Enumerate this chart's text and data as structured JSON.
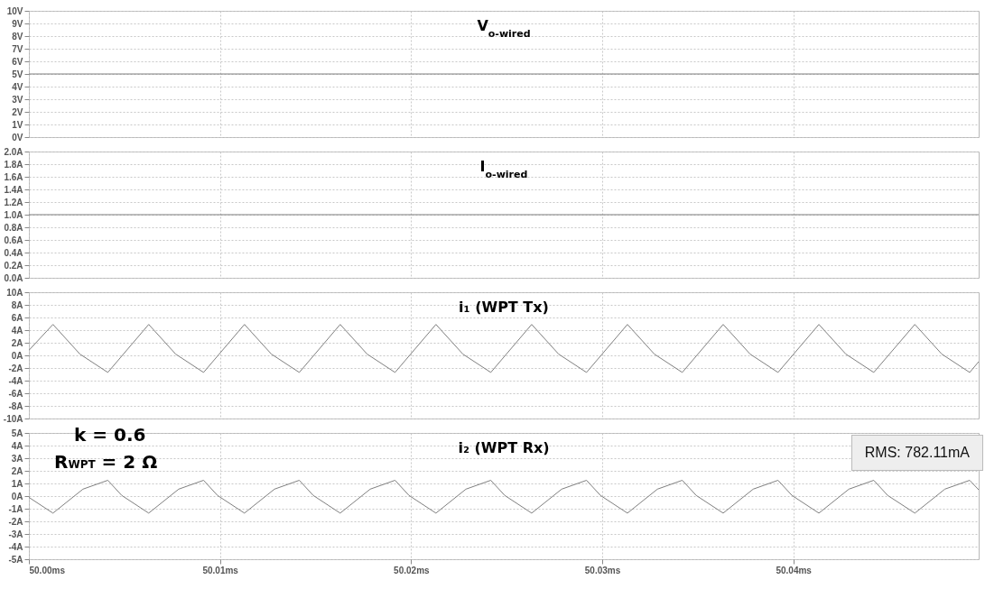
{
  "chart_data": [
    {
      "type": "line",
      "title": "V$_{o-wired}$",
      "x": [
        50,
        50.0497
      ],
      "values": [
        5,
        5
      ],
      "color": "#7f7f7f",
      "xlim": [
        50,
        50.0497
      ],
      "xticks": [
        {
          "value": 50,
          "label": null
        },
        {
          "value": 50.01,
          "label": null
        },
        {
          "value": 50.02,
          "label": null
        },
        {
          "value": 50.03,
          "label": null
        },
        {
          "value": 50.04,
          "label": null
        }
      ],
      "ylim": [
        0,
        10
      ],
      "yticks": [
        {
          "value": 0,
          "label": "0V"
        },
        {
          "value": 1,
          "label": "1V"
        },
        {
          "value": 2,
          "label": "2V"
        },
        {
          "value": 3,
          "label": "3V"
        },
        {
          "value": 4,
          "label": "4V"
        },
        {
          "value": 5,
          "label": "5V"
        },
        {
          "value": 6,
          "label": "6V"
        },
        {
          "value": 7,
          "label": "7V"
        },
        {
          "value": 8,
          "label": "8V"
        },
        {
          "value": 9,
          "label": "9V"
        },
        {
          "value": 10,
          "label": "10V"
        }
      ],
      "grid": true,
      "tick_labels": "y"
    },
    {
      "type": "line",
      "title": "I$_{o-wired}$",
      "x": [
        50,
        50.0497
      ],
      "values": [
        1,
        1
      ],
      "color": "#7f7f7f",
      "xlim": [
        50,
        50.0497
      ],
      "xticks": [
        {
          "value": 50,
          "label": null
        },
        {
          "value": 50.01,
          "label": null
        },
        {
          "value": 50.02,
          "label": null
        },
        {
          "value": 50.03,
          "label": null
        },
        {
          "value": 50.04,
          "label": null
        }
      ],
      "ylim": [
        0,
        2
      ],
      "yticks": [
        {
          "value": 0,
          "label": "0.0A"
        },
        {
          "value": 0.2,
          "label": "0.2A"
        },
        {
          "value": 0.4,
          "label": "0.4A"
        },
        {
          "value": 0.6,
          "label": "0.6A"
        },
        {
          "value": 0.8,
          "label": "0.8A"
        },
        {
          "value": 1,
          "label": "1.0A"
        },
        {
          "value": 1.2,
          "label": "1.2A"
        },
        {
          "value": 1.4,
          "label": "1.4A"
        },
        {
          "value": 1.6,
          "label": "1.6A"
        },
        {
          "value": 1.8,
          "label": "1.8A"
        },
        {
          "value": 2,
          "label": "2.0A"
        }
      ],
      "grid": true,
      "tick_labels": "y"
    },
    {
      "type": "line",
      "title": "i₁ (WPT Tx)",
      "x": [
        50,
        50.00126,
        50.00267,
        50.00413,
        50.00627,
        50.00768,
        50.00914,
        50.01128,
        50.01269,
        50.01415,
        50.01629,
        50.0177,
        50.01916,
        50.0213,
        50.02271,
        50.02417,
        50.02631,
        50.02772,
        50.02918,
        50.03132,
        50.03273,
        50.03419,
        50.03633,
        50.03774,
        50.0392,
        50.04134,
        50.04275,
        50.04421,
        50.04636,
        50.04777,
        50.04923,
        50.0497
      ],
      "values": [
        0.8,
        4.9,
        0.2,
        -2.7,
        4.9,
        0.2,
        -2.7,
        4.9,
        0.2,
        -2.7,
        4.9,
        0.2,
        -2.7,
        4.9,
        0.2,
        -2.7,
        4.9,
        0.2,
        -2.7,
        4.9,
        0.2,
        -2.7,
        4.9,
        0.2,
        -2.7,
        4.9,
        0.2,
        -2.7,
        4.9,
        0.2,
        -2.7,
        -1.0
      ],
      "color": "#7f7f7f",
      "xlim": [
        50,
        50.0497
      ],
      "xticks": [
        {
          "value": 50,
          "label": null
        },
        {
          "value": 50.01,
          "label": null
        },
        {
          "value": 50.02,
          "label": null
        },
        {
          "value": 50.03,
          "label": null
        },
        {
          "value": 50.04,
          "label": null
        }
      ],
      "ylim": [
        -10,
        10
      ],
      "yticks": [
        {
          "value": -10,
          "label": "-10A"
        },
        {
          "value": -8,
          "label": "-8A"
        },
        {
          "value": -6,
          "label": "-6A"
        },
        {
          "value": -4,
          "label": "-4A"
        },
        {
          "value": -2,
          "label": "-2A"
        },
        {
          "value": 0,
          "label": "0A"
        },
        {
          "value": 2,
          "label": "2A"
        },
        {
          "value": 4,
          "label": "4A"
        },
        {
          "value": 6,
          "label": "6A"
        },
        {
          "value": 8,
          "label": "8A"
        },
        {
          "value": 10,
          "label": "10A"
        }
      ],
      "grid": true,
      "tick_labels": "y"
    },
    {
      "type": "line",
      "title": "i₂ (WPT Rx)",
      "x": [
        50,
        50.00126,
        50.00283,
        50.00413,
        50.00486,
        50.00627,
        50.00784,
        50.00914,
        50.00987,
        50.01128,
        50.01285,
        50.01415,
        50.01488,
        50.01629,
        50.01786,
        50.01916,
        50.01989,
        50.0213,
        50.02287,
        50.02417,
        50.0249,
        50.02631,
        50.02788,
        50.02918,
        50.02991,
        50.03132,
        50.03289,
        50.03419,
        50.03492,
        50.03633,
        50.0379,
        50.0392,
        50.03993,
        50.04134,
        50.04291,
        50.04421,
        50.04494,
        50.04636,
        50.04793,
        50.04923,
        50.0497
      ],
      "values": [
        -0.1,
        -1.35,
        0.55,
        1.25,
        0.05,
        -1.35,
        0.55,
        1.25,
        0.05,
        -1.35,
        0.55,
        1.25,
        0.05,
        -1.35,
        0.55,
        1.25,
        0.05,
        -1.35,
        0.55,
        1.25,
        0.05,
        -1.35,
        0.55,
        1.25,
        0.05,
        -1.35,
        0.55,
        1.25,
        0.05,
        -1.35,
        0.55,
        1.25,
        0.05,
        -1.35,
        0.55,
        1.25,
        0.05,
        -1.35,
        0.55,
        1.25,
        0.5
      ],
      "color": "#7f7f7f",
      "xlim": [
        50,
        50.0497
      ],
      "xticks": [
        {
          "value": 50,
          "label": "50.00ms"
        },
        {
          "value": 50.01,
          "label": "50.01ms"
        },
        {
          "value": 50.02,
          "label": "50.02ms"
        },
        {
          "value": 50.03,
          "label": "50.03ms"
        },
        {
          "value": 50.04,
          "label": "50.04ms"
        }
      ],
      "ylim": [
        -5,
        5
      ],
      "yticks": [
        {
          "value": -5,
          "label": "-5A"
        },
        {
          "value": -4,
          "label": "-4A"
        },
        {
          "value": -3,
          "label": "-3A"
        },
        {
          "value": -2,
          "label": "-2A"
        },
        {
          "value": -1,
          "label": "-1A"
        },
        {
          "value": 0,
          "label": "0A"
        },
        {
          "value": 1,
          "label": "1A"
        },
        {
          "value": 2,
          "label": "2A"
        },
        {
          "value": 3,
          "label": "3A"
        },
        {
          "value": 4,
          "label": "4A"
        },
        {
          "value": 5,
          "label": "5A"
        }
      ],
      "grid": true,
      "annotations": [
        "k = 0.6",
        "R$_{WPT}$ = 2 Ω",
        "RMS: 782.11mA"
      ]
    }
  ]
}
